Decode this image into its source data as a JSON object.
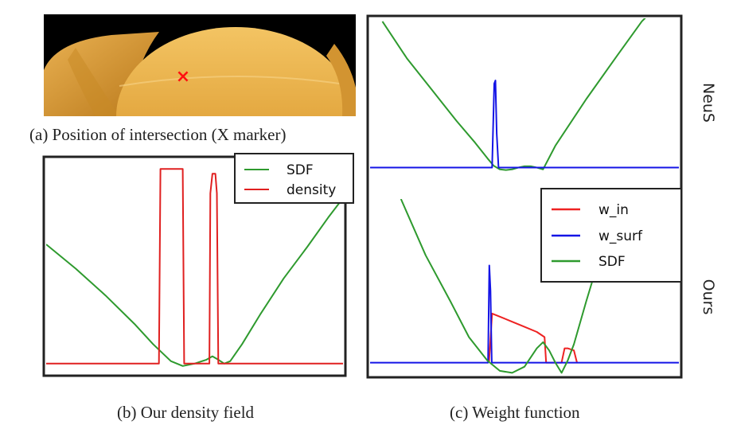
{
  "captions": {
    "a": "(a) Position of intersection (X marker)",
    "b": "(b) Our density field",
    "c": "(c) Weight function"
  },
  "row_labels": {
    "top": "NeuS",
    "bottom": "Ours"
  },
  "colors": {
    "sdf": "#2e9a2e",
    "density": "#e02020",
    "w_in": "#ee2222",
    "w_surf": "#1414e6",
    "render_bg": "#000000",
    "object": "#e0a238",
    "marker": "#ff1010"
  },
  "photo": {
    "marker_symbol": "×",
    "marker_description": "intersection marker"
  },
  "chart_data": [
    {
      "id": "density_field",
      "type": "line",
      "title": "",
      "xlabel": "",
      "ylabel": "",
      "xlim": [
        0,
        100
      ],
      "ylim": [
        -1.2,
        3.2
      ],
      "legend": {
        "placement": "top-right"
      },
      "grid": false,
      "series": [
        {
          "name": "SDF",
          "color": "#2e9a2e",
          "x": [
            0,
            10,
            20,
            30,
            36,
            42,
            46,
            50,
            54,
            56,
            58,
            60,
            62,
            66,
            72,
            80,
            88,
            95,
            100
          ],
          "y": [
            1.45,
            0.95,
            0.4,
            -0.2,
            -0.6,
            -0.95,
            -1.05,
            -1.0,
            -0.92,
            -0.85,
            -0.92,
            -1.0,
            -0.95,
            -0.6,
            0.0,
            0.75,
            1.4,
            2.0,
            2.4
          ]
        },
        {
          "name": "density",
          "color": "#e02020",
          "x": [
            0,
            38,
            38.5,
            46,
            46.5,
            55,
            55.3,
            56,
            57,
            57.5,
            58,
            58.7,
            100
          ],
          "y": [
            -1.0,
            -1.0,
            3.0,
            3.0,
            -1.0,
            -1.0,
            2.5,
            2.9,
            2.9,
            2.5,
            -1.0,
            -1.0,
            -1.0
          ]
        }
      ]
    },
    {
      "id": "neus_weight",
      "type": "line",
      "title": "",
      "xlim": [
        0,
        100
      ],
      "ylim": [
        -0.25,
        2.4
      ],
      "grid": false,
      "series": [
        {
          "name": "SDF",
          "color": "#2e9a2e",
          "x": [
            4,
            12,
            20,
            28,
            34,
            38,
            40,
            42,
            44,
            46,
            48,
            50,
            52,
            54,
            56,
            60,
            70,
            80,
            88,
            90
          ],
          "y": [
            2.35,
            1.75,
            1.25,
            0.75,
            0.4,
            0.15,
            0.03,
            -0.03,
            -0.04,
            -0.03,
            0.0,
            0.02,
            0.02,
            0.0,
            -0.03,
            0.35,
            1.1,
            1.8,
            2.35,
            2.45
          ]
        },
        {
          "name": "w_surf",
          "color": "#1414e6",
          "x": [
            0,
            39.5,
            40.2,
            40.6,
            41.0,
            41.6,
            100
          ],
          "y": [
            0.0,
            0.0,
            1.35,
            1.4,
            0.55,
            0.0,
            0.0
          ]
        }
      ]
    },
    {
      "id": "ours_weight",
      "type": "line",
      "title": "",
      "xlim": [
        0,
        100
      ],
      "ylim": [
        -0.12,
        1.6
      ],
      "legend": {
        "placement": "top-right"
      },
      "grid": false,
      "series": [
        {
          "name": "w_in",
          "color": "#ee2222",
          "x": [
            38.5,
            39.5,
            42,
            46,
            50,
            54,
            56.5,
            57,
            62,
            63,
            64,
            66,
            67
          ],
          "y": [
            0.0,
            0.48,
            0.45,
            0.4,
            0.35,
            0.3,
            0.25,
            0.0,
            0.0,
            0.14,
            0.14,
            0.12,
            0.0
          ]
        },
        {
          "name": "w_surf",
          "color": "#1414e6",
          "x": [
            0,
            38.2,
            38.6,
            39.0,
            39.4,
            100
          ],
          "y": [
            0.0,
            0.0,
            0.95,
            0.7,
            0.0,
            0.0
          ]
        },
        {
          "name": "SDF",
          "color": "#2e9a2e",
          "x": [
            10,
            18,
            26,
            32,
            38,
            42,
            46,
            50,
            54,
            56,
            58,
            60,
            62,
            64,
            66,
            70,
            76
          ],
          "y": [
            1.6,
            1.05,
            0.6,
            0.25,
            0.02,
            -0.08,
            -0.1,
            -0.04,
            0.14,
            0.2,
            0.12,
            0.0,
            -0.1,
            0.02,
            0.18,
            0.6,
            1.2
          ]
        }
      ]
    }
  ]
}
